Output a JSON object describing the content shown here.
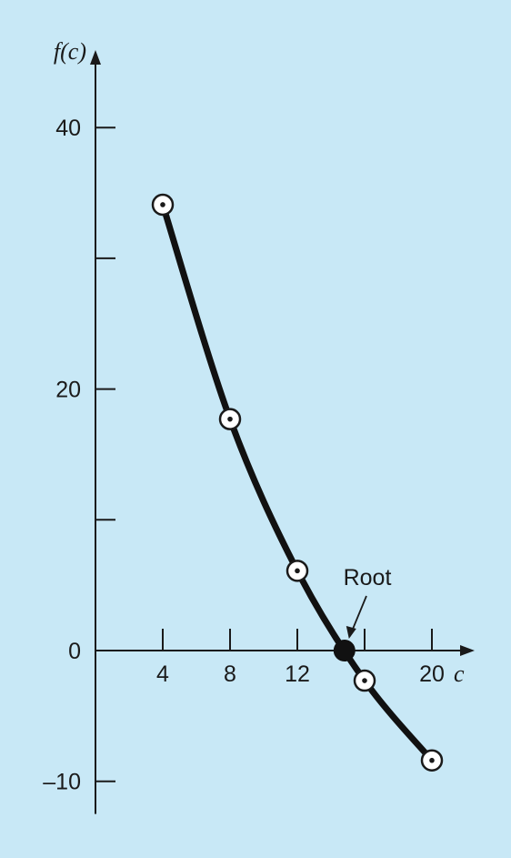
{
  "chart_data": {
    "type": "line",
    "xlabel": "c",
    "ylabel": "f(c)",
    "xlim": [
      0,
      22.5
    ],
    "ylim": [
      -12.5,
      42.5
    ],
    "x_ticks": [
      4,
      8,
      12,
      16,
      20
    ],
    "x_tick_labels": [
      "4",
      "8",
      "12",
      "",
      "20"
    ],
    "y_ticks": [
      -10,
      0,
      10,
      20,
      30,
      40
    ],
    "y_tick_labels": [
      "–10",
      "0",
      "",
      "20",
      "",
      "40"
    ],
    "points": [
      {
        "x": 4,
        "y": 34.1
      },
      {
        "x": 8,
        "y": 17.7
      },
      {
        "x": 12,
        "y": 6.1
      },
      {
        "x": 16,
        "y": -2.3
      },
      {
        "x": 20,
        "y": -8.4
      }
    ],
    "root": {
      "x": 14.8,
      "y": 0,
      "label": "Root"
    },
    "grid": false,
    "legend": "none"
  },
  "colors": {
    "background": "#c8e8f6",
    "curve": "#111111"
  }
}
